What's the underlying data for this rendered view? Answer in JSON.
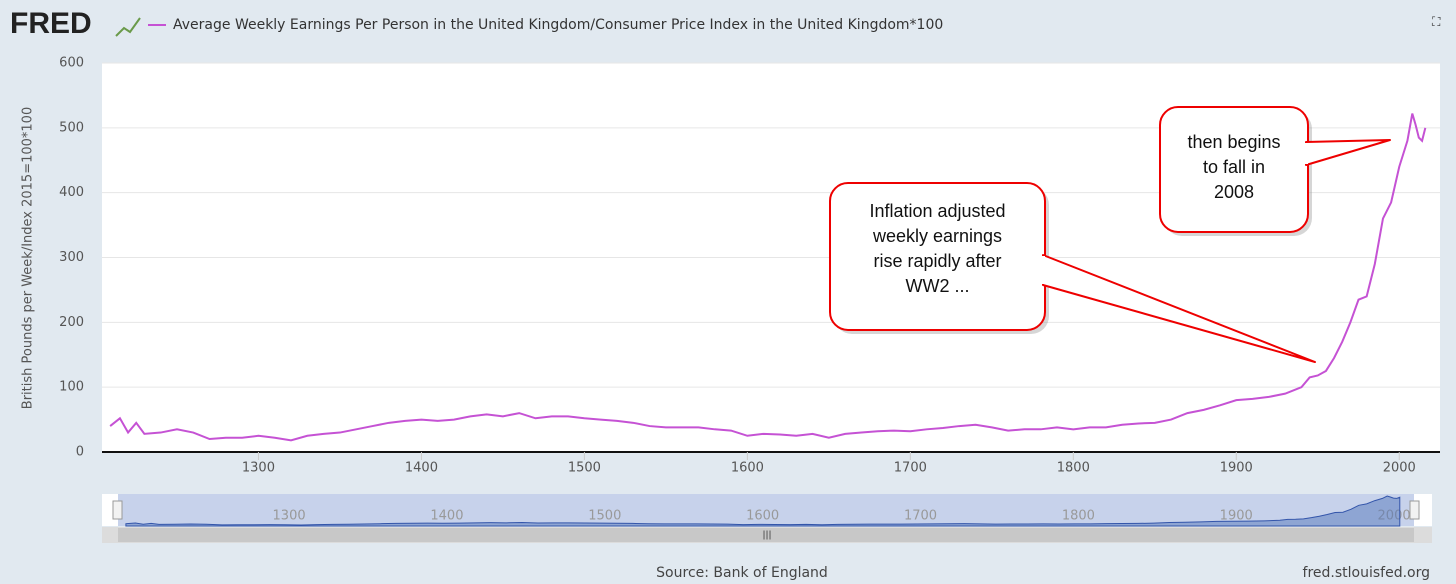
{
  "header": {
    "logo": "FRED"
  },
  "chart_data": {
    "type": "line",
    "title": "Average Weekly Earnings Per Person in the United Kingdom/Consumer Price Index in the United Kingdom*100",
    "y_label": "British Pounds per Week/Index 2015=100*100",
    "x": [
      1209,
      1215,
      1220,
      1225,
      1230,
      1240,
      1250,
      1260,
      1270,
      1280,
      1290,
      1300,
      1310,
      1320,
      1330,
      1340,
      1350,
      1360,
      1370,
      1380,
      1390,
      1400,
      1410,
      1420,
      1430,
      1440,
      1450,
      1460,
      1470,
      1480,
      1490,
      1500,
      1510,
      1520,
      1530,
      1540,
      1550,
      1560,
      1570,
      1580,
      1590,
      1600,
      1610,
      1620,
      1630,
      1640,
      1650,
      1660,
      1670,
      1680,
      1690,
      1700,
      1710,
      1720,
      1730,
      1740,
      1750,
      1760,
      1770,
      1780,
      1790,
      1800,
      1810,
      1820,
      1830,
      1840,
      1850,
      1860,
      1870,
      1880,
      1890,
      1900,
      1910,
      1920,
      1930,
      1940,
      1945,
      1950,
      1955,
      1960,
      1965,
      1970,
      1975,
      1980,
      1985,
      1990,
      1995,
      2000,
      2005,
      2008,
      2010,
      2012,
      2014,
      2016
    ],
    "series": [
      {
        "name": "Average Weekly Earnings Per Person in the United Kingdom/Consumer Price Index in the United Kingdom*100",
        "color": "#c552d4",
        "values": [
          40,
          52,
          30,
          45,
          28,
          30,
          35,
          30,
          20,
          22,
          22,
          25,
          22,
          18,
          25,
          28,
          30,
          35,
          40,
          45,
          48,
          50,
          48,
          50,
          55,
          58,
          55,
          60,
          52,
          55,
          55,
          52,
          50,
          48,
          45,
          40,
          38,
          38,
          38,
          35,
          33,
          25,
          28,
          27,
          25,
          28,
          22,
          28,
          30,
          32,
          33,
          32,
          35,
          37,
          40,
          42,
          38,
          33,
          35,
          35,
          38,
          35,
          38,
          38,
          42,
          44,
          45,
          50,
          60,
          65,
          72,
          80,
          82,
          85,
          90,
          100,
          115,
          118,
          125,
          145,
          170,
          200,
          235,
          240,
          290,
          360,
          385,
          440,
          480,
          522,
          505,
          485,
          480,
          500
        ]
      }
    ],
    "xlim": [
      1204,
      2025
    ],
    "ylim": [
      0,
      600
    ],
    "xticks": [
      1300,
      1400,
      1500,
      1600,
      1700,
      1800,
      1900,
      2000
    ],
    "yticks": [
      0,
      100,
      200,
      300,
      400,
      500,
      600
    ],
    "grid": true,
    "annotations": [
      [
        "Inflation adjusted",
        "weekly earnings",
        "rise rapidly after",
        "WW2 ..."
      ],
      [
        "then begins",
        "to fall in",
        "2008"
      ]
    ],
    "source": "Source: Bank of England",
    "site": "fred.stlouisfed.org"
  }
}
